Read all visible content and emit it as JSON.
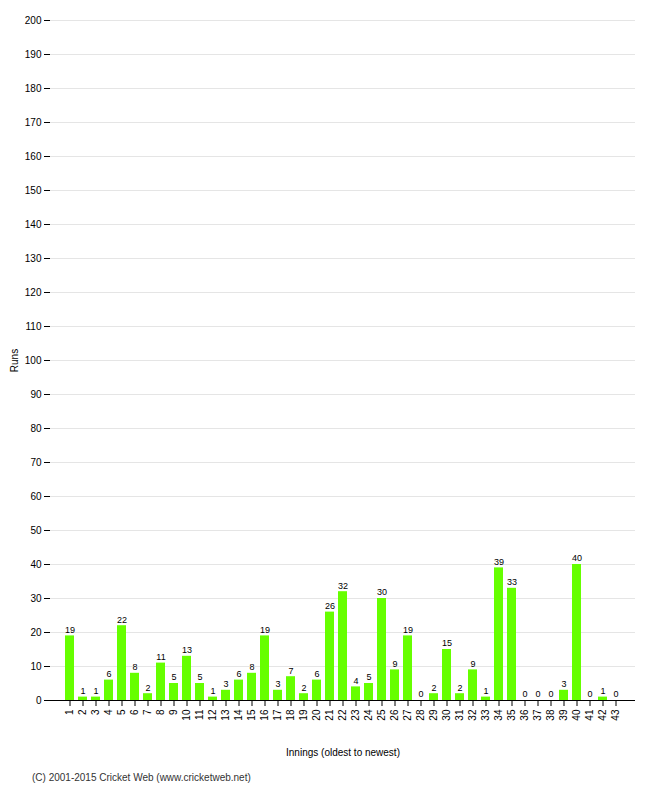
{
  "chart_data": {
    "type": "bar",
    "categories": [
      "1",
      "2",
      "3",
      "4",
      "5",
      "6",
      "7",
      "8",
      "9",
      "10",
      "11",
      "12",
      "13",
      "14",
      "15",
      "16",
      "17",
      "18",
      "19",
      "20",
      "21",
      "22",
      "23",
      "24",
      "25",
      "26",
      "27",
      "28",
      "29",
      "30",
      "31",
      "32",
      "33",
      "34",
      "35",
      "36",
      "37",
      "38",
      "39",
      "40",
      "41",
      "42",
      "43"
    ],
    "values": [
      19,
      1,
      1,
      6,
      22,
      8,
      2,
      11,
      5,
      13,
      5,
      1,
      3,
      6,
      8,
      19,
      3,
      7,
      2,
      6,
      26,
      32,
      4,
      5,
      30,
      9,
      19,
      0,
      2,
      15,
      2,
      9,
      1,
      39,
      33,
      0,
      0,
      0,
      3,
      40,
      0,
      1,
      0
    ],
    "color": "#66ff00",
    "xlabel": "Innings (oldest to newest)",
    "ylabel": "Runs",
    "ylim": [
      0,
      200
    ],
    "yticks": [
      0,
      10,
      20,
      30,
      40,
      50,
      60,
      70,
      80,
      90,
      100,
      110,
      120,
      130,
      140,
      150,
      160,
      170,
      180,
      190,
      200
    ],
    "grid": true,
    "data_labels": true,
    "footer": "(C) 2001-2015 Cricket Web (www.cricketweb.net)"
  }
}
